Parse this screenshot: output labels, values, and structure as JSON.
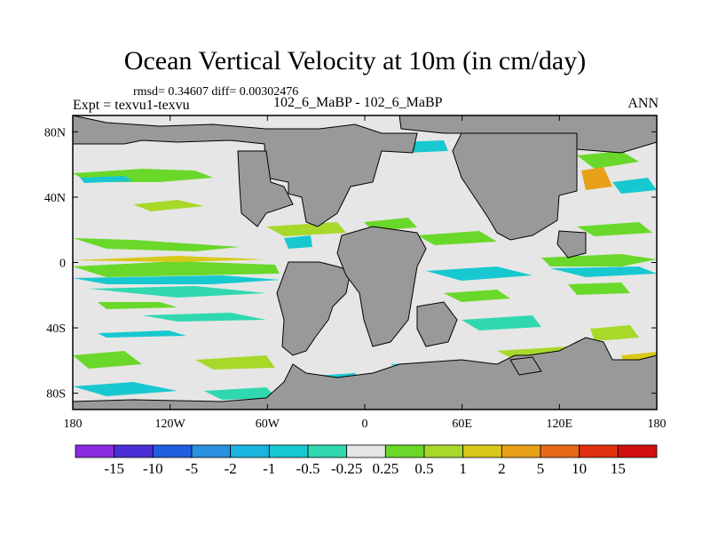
{
  "chart_data": {
    "type": "heatmap",
    "title": "Ocean Vertical Velocity at 10m (in cm/day)",
    "stats": "rmsd= 0.34607 diff= 0.00302476",
    "left_label": "Expt = texvu1-texvu",
    "center_label": "102_6_MaBP - 102_6_MaBP",
    "right_label": "ANN",
    "x_ticks": [
      "180",
      "120W",
      "60W",
      "0",
      "60E",
      "120E",
      "180"
    ],
    "y_ticks": [
      "80N",
      "40N",
      "0",
      "40S",
      "80S"
    ],
    "xlim": [
      -180,
      180
    ],
    "ylim": [
      -90,
      90
    ],
    "colorbar": {
      "levels": [
        "-15",
        "-10",
        "-5",
        "-2",
        "-1",
        "-0.5",
        "-0.25",
        "0.25",
        "0.5",
        "1",
        "2",
        "5",
        "10",
        "15"
      ],
      "colors": [
        "#8a2be2",
        "#4b2fd6",
        "#2060e0",
        "#2a90e0",
        "#1ab4e0",
        "#18c8d0",
        "#30d8b0",
        "#e6e6e6",
        "#6ad82a",
        "#a8d82a",
        "#d8c81a",
        "#e8a018",
        "#e86818",
        "#e03010",
        "#d01010"
      ]
    },
    "colors": {
      "land": "#999999",
      "ocean_neutral": "#e6e6e6"
    }
  }
}
